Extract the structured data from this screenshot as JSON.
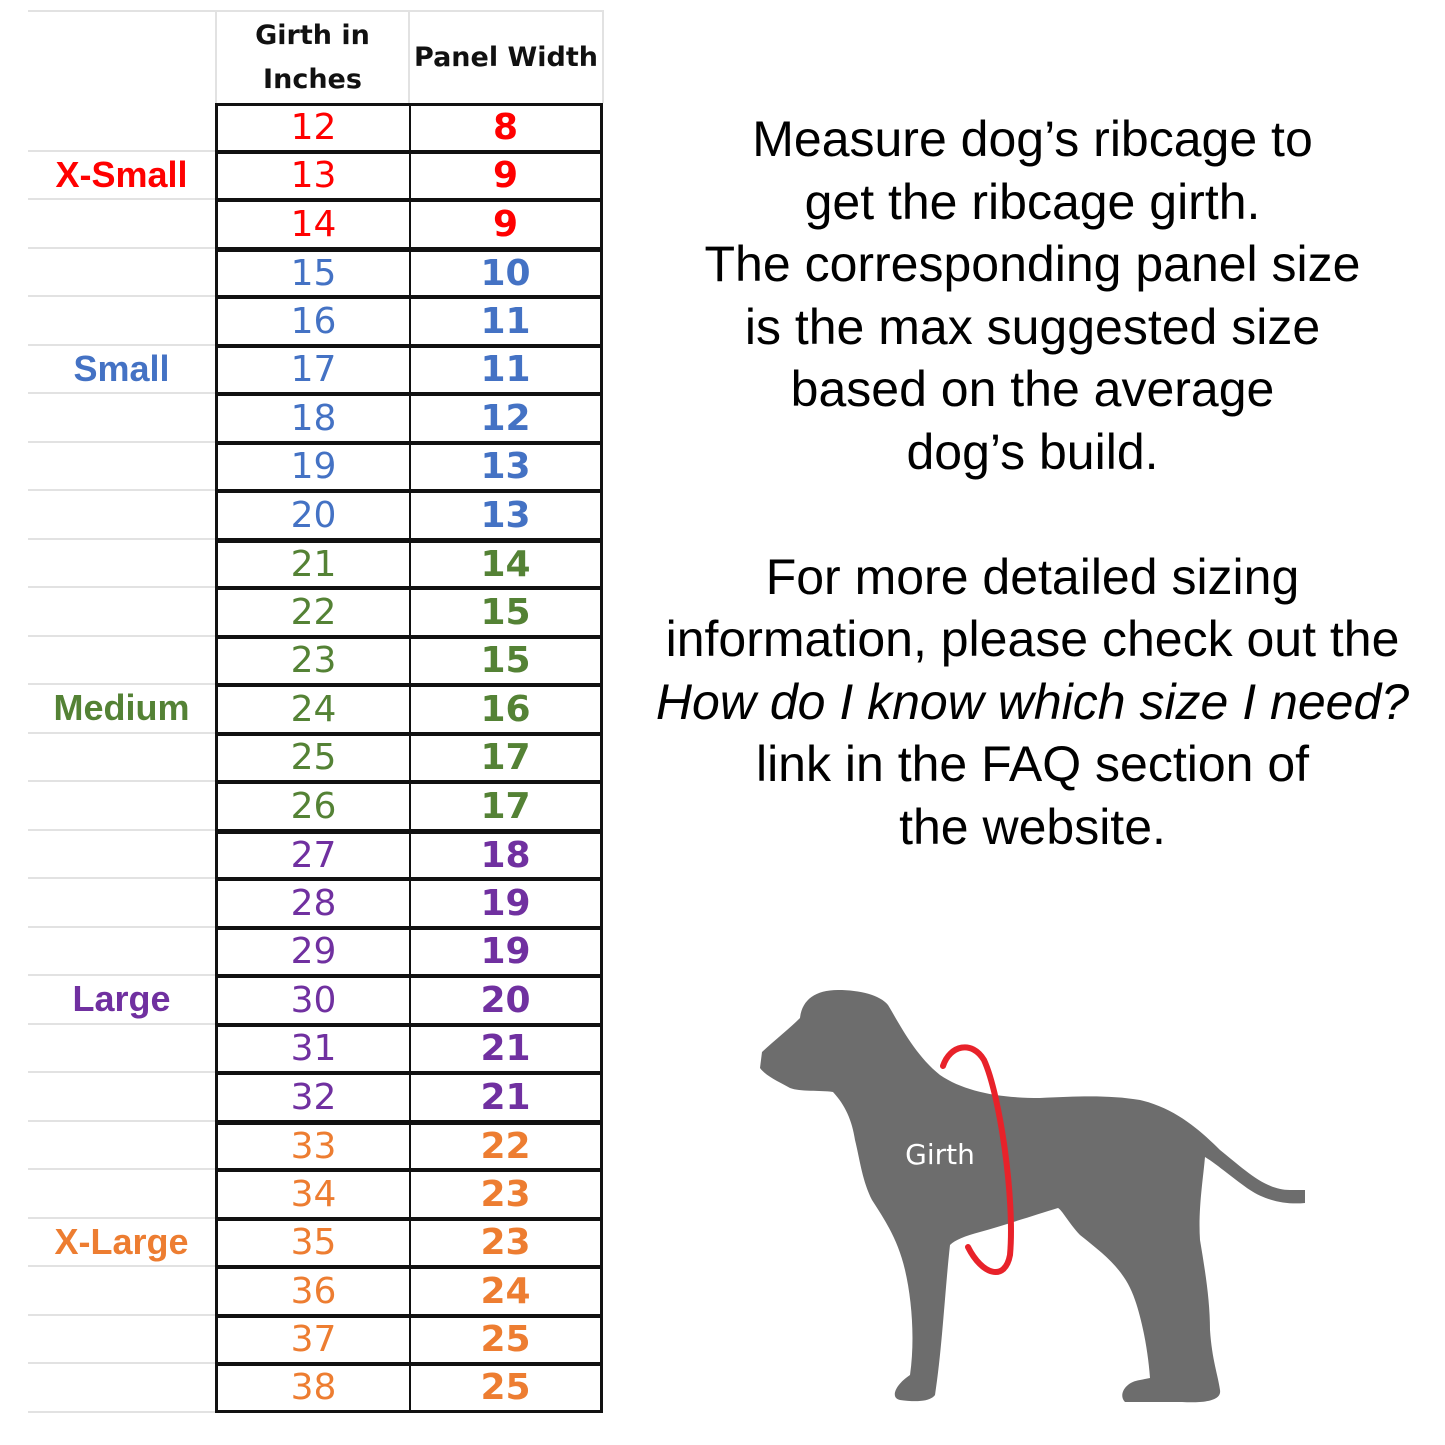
{
  "table": {
    "headers": {
      "size": "",
      "girth": "Girth in Inches",
      "girth_line1": "Girth in",
      "girth_line2": "Inches",
      "panel": "Panel Width"
    },
    "groups": [
      {
        "label": "X-Small",
        "color": "#ff0000",
        "label_at": 1,
        "rows": [
          [
            12,
            8
          ],
          [
            13,
            9
          ],
          [
            14,
            9
          ]
        ]
      },
      {
        "label": "Small",
        "color": "#4472c4",
        "label_at": 2,
        "rows": [
          [
            15,
            10
          ],
          [
            16,
            11
          ],
          [
            17,
            11
          ],
          [
            18,
            12
          ],
          [
            19,
            13
          ],
          [
            20,
            13
          ]
        ]
      },
      {
        "label": "Medium",
        "color": "#548235",
        "label_at": 3,
        "rows": [
          [
            21,
            14
          ],
          [
            22,
            15
          ],
          [
            23,
            15
          ],
          [
            24,
            16
          ],
          [
            25,
            17
          ],
          [
            26,
            17
          ]
        ]
      },
      {
        "label": "Large",
        "color": "#7030a0",
        "label_at": 3,
        "rows": [
          [
            27,
            18
          ],
          [
            28,
            19
          ],
          [
            29,
            19
          ],
          [
            30,
            20
          ],
          [
            31,
            21
          ],
          [
            32,
            21
          ]
        ]
      },
      {
        "label": "X-Large",
        "color": "#ed7d31",
        "label_at": 2,
        "rows": [
          [
            33,
            22
          ],
          [
            34,
            23
          ],
          [
            35,
            23
          ],
          [
            36,
            24
          ],
          [
            37,
            25
          ],
          [
            38,
            25
          ]
        ]
      }
    ]
  },
  "instructions": {
    "para1": [
      "Measure dog’s ribcage to",
      "get the ribcage girth.",
      "The corresponding panel size",
      "is the max suggested size",
      "based on the average",
      "dog’s build."
    ],
    "para2_a": [
      "For more detailed sizing",
      "information, please check out the"
    ],
    "para2_link": "How do I know which size I need?",
    "para2_b": [
      "link in the FAQ section of",
      "the website."
    ]
  },
  "illustration": {
    "label": "Girth",
    "dog_color": "#6d6d6d",
    "ring_color": "#e8222a"
  }
}
